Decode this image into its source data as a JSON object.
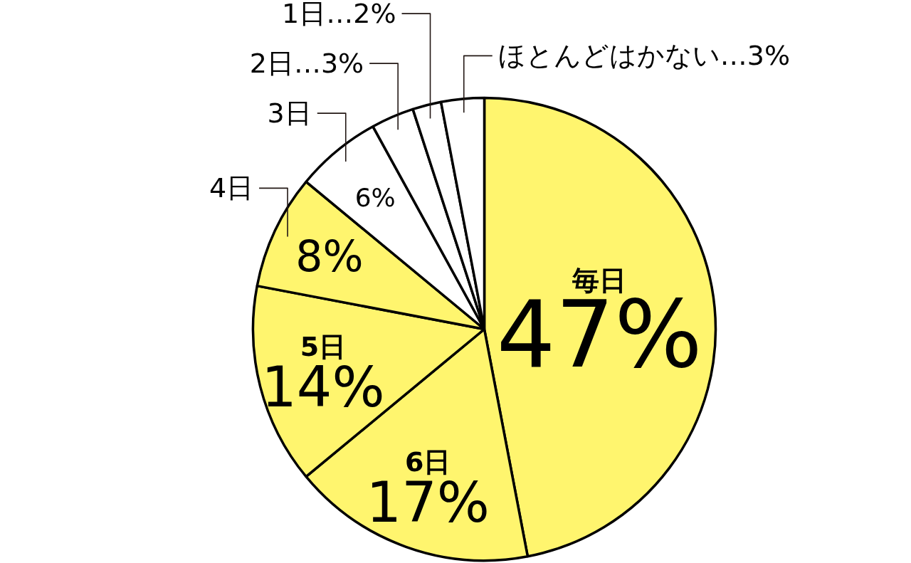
{
  "chart_data": {
    "type": "pie",
    "categories": [
      "毎日",
      "6日",
      "5日",
      "4日",
      "3日",
      "2日",
      "1日",
      "ほとんどはかない"
    ],
    "values": [
      47,
      17,
      14,
      8,
      6,
      3,
      2,
      3
    ],
    "colors": [
      "#fff56e",
      "#fff56e",
      "#fff56e",
      "#fff56e",
      "#ffffff",
      "#ffffff",
      "#ffffff",
      "#ffffff"
    ],
    "value_labels": [
      "47%",
      "17%",
      "14%",
      "8%",
      "6%",
      "…3%",
      "…2%",
      "…3%"
    ]
  }
}
